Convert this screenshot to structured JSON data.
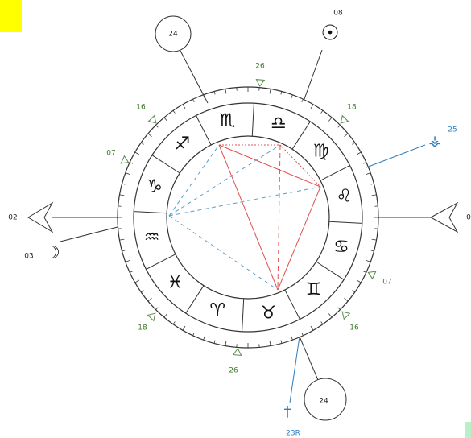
{
  "signs": [
    "♏",
    "♎",
    "♍",
    "♌",
    "♋",
    "♊",
    "♉",
    "♈",
    "♓",
    "♒",
    "♑",
    "♐"
  ],
  "cusp_degrees": [
    "26",
    "18",
    "07",
    "16",
    "26",
    "18",
    "07",
    "16"
  ],
  "axes": {
    "left": "02",
    "right": "0"
  },
  "house_circles": [
    "24",
    "24"
  ],
  "planets": [
    {
      "glyph": "☉",
      "degree": "08"
    },
    {
      "glyph": "☽",
      "degree": "03"
    },
    {
      "glyph": "⚶",
      "degree": "25"
    },
    {
      "glyph": "†",
      "degree": "23R"
    }
  ]
}
